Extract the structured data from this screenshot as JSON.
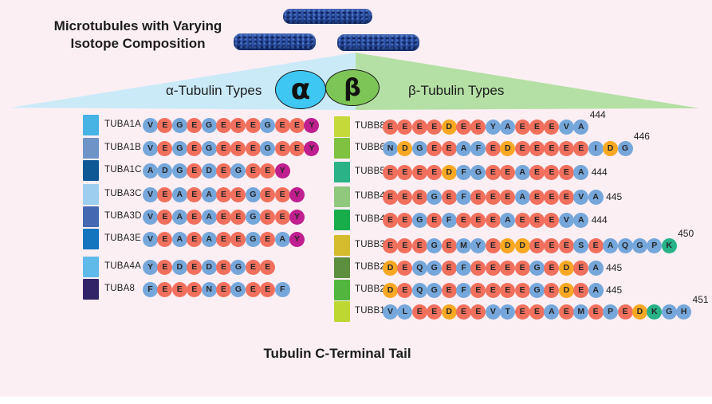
{
  "title": {
    "line1": "Microtubules with Varying",
    "line2": "Isotope Composition"
  },
  "bottom_title": "Tubulin C-Terminal Tail",
  "residue_colors": {
    "r": "#F1705D",
    "b": "#76A7DB",
    "o": "#F8A823",
    "m": "#BF1F8F",
    "t": "#27B287"
  },
  "alpha": {
    "label": "α-Tubulin Types",
    "symbol": "α",
    "symbol_fill": "#3EC7F2",
    "wedge_fill": "#CBEAF8",
    "rows": [
      {
        "name": "TUBA1A",
        "swatch": "#47B2E4",
        "seq": "VEGEGEEEGEEY",
        "colors": "brbrbrrrbrrm"
      },
      {
        "name": "TUBA1B",
        "swatch": "#6E93C6",
        "seq": "VEGEGEEEGEEY",
        "colors": "brbrbrrrbrrm"
      },
      {
        "name": "TUBA1C",
        "swatch": "#0F5896",
        "seq": "ADGEDEGEEY",
        "colors": "bbbrbrbrrm"
      },
      {
        "name": "TUBA3C",
        "swatch": "#9DCEEF",
        "seq": "VEAEAEEGEEY",
        "colors": "brbrbrrbrrm"
      },
      {
        "name": "TUBA3D",
        "swatch": "#4568B2",
        "seq": "VEAEAEEGEEY",
        "colors": "brbrbrrbrrm"
      },
      {
        "name": "TUBA3E",
        "swatch": "#1375BD",
        "seq": "VEAEAEEGEAY",
        "colors": "brbrbrrbrbm"
      },
      {
        "name": "TUBA4A",
        "swatch": "#5FB9E9",
        "seq": "YEDEDEGEE",
        "colors": "brbrbrbrr"
      },
      {
        "name": "TUBA8",
        "swatch": "#322366",
        "seq": "FEEENEGEEF",
        "colors": "brrrbrbrrb"
      }
    ]
  },
  "beta": {
    "label": "β-Tubulin Types",
    "symbol": "β",
    "symbol_fill": "#7CC556",
    "wedge_fill": "#B5E0A5",
    "rows": [
      {
        "name": "TUBB8",
        "swatch": "#C6D93B",
        "seq": "EEEEDEEYAEEEVA",
        "colors": "rrrrorrbbrrrbb",
        "end": "444",
        "end_pos": "above"
      },
      {
        "name": "TUBB6",
        "swatch": "#7FC241",
        "seq": "NDGEEAFEDEEEEEIDG",
        "colors": "bobrrbbrorrrrrbob",
        "end": "446",
        "end_pos": "above"
      },
      {
        "name": "TUBB5",
        "swatch": "#2BB287",
        "seq": "EEEEDFGEEAEEEA",
        "colors": "rrrrobbrrbrrrb",
        "end": "444",
        "end_pos": "inline"
      },
      {
        "name": "TUBB4B",
        "swatch": "#90C97E",
        "seq": "EEEGEFEEEAEEEVA",
        "colors": "rrrbrbrrrbrrrbb",
        "end": "445",
        "end_pos": "inline"
      },
      {
        "name": "TUBB4A",
        "swatch": "#17AD4B",
        "seq": "EEGEFEEEAEEEVA",
        "colors": "rrbrbrrrbrrrbb",
        "end": "444",
        "end_pos": "inline"
      },
      {
        "name": "TUBB3",
        "swatch": "#D4BC2E",
        "seq": "EEEGEMYEDDEEESEAQGPK",
        "colors": "rrrbrbbroorrrbrbbbbt",
        "end": "450",
        "end_pos": "above"
      },
      {
        "name": "TUBB2B",
        "swatch": "#5C8F3E",
        "seq": "DEQGEFEEEEGEDEA",
        "colors": "orbbrbrrrrbrorb",
        "end": "445",
        "end_pos": "inline"
      },
      {
        "name": "TUBB2A",
        "swatch": "#52B63E",
        "seq": "DEQGEFEEEEGEDEA",
        "colors": "orbbrbrrrrbrorb",
        "end": "445",
        "end_pos": "inline"
      },
      {
        "name": "TUBB1",
        "swatch": "#BFD731",
        "seq": "VLEEDEEVTEEAEMEPEDKGH",
        "colors": "bbrrorrbbrrbrbrbrotbb",
        "end": "451",
        "end_pos": "above"
      }
    ]
  }
}
